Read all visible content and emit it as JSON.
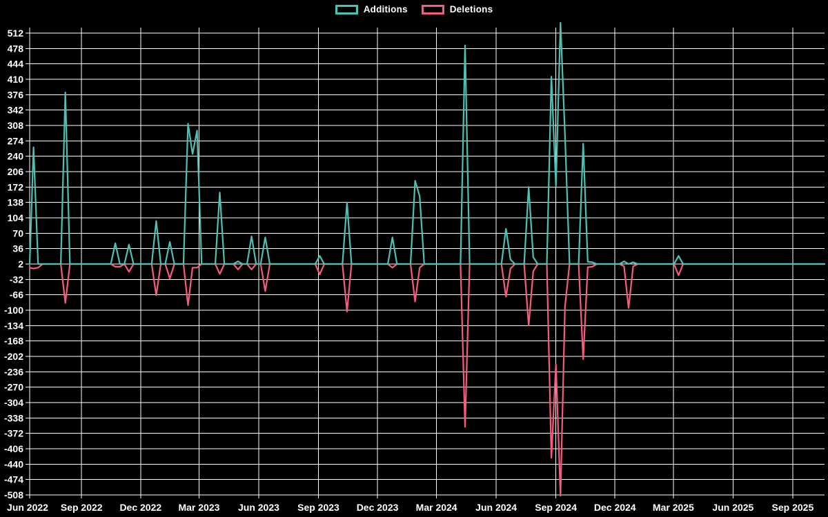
{
  "chart_data": {
    "type": "line",
    "title": "",
    "legend_position": "top",
    "background_color": "#000000",
    "grid_color": "#ffffff",
    "tick_color": "#ffffff",
    "series": [
      {
        "name": "Additions",
        "color": "#4bc2b4"
      },
      {
        "name": "Deletions",
        "color": "#f75c7e"
      }
    ],
    "x_ticks": [
      "Jun 2022",
      "Sep 2022",
      "Dec 2022",
      "Mar 2023",
      "Jun 2023",
      "Sep 2023",
      "Dec 2023",
      "Mar 2024",
      "Jun 2024",
      "Sep 2024",
      "Dec 2024",
      "Mar 2025",
      "Jun 2025",
      "Sep 2025"
    ],
    "y_ticks": [
      512,
      478,
      444,
      410,
      376,
      342,
      308,
      274,
      240,
      206,
      172,
      138,
      104,
      70,
      36,
      2,
      -32,
      -66,
      -100,
      -134,
      -168,
      -202,
      -236,
      -270,
      -304,
      -338,
      -372,
      -406,
      -440,
      -474,
      -508
    ],
    "x_axis": {
      "start_date": "2022-06-13",
      "end_date": "2025-10-20"
    },
    "interval": "weekly",
    "baseline_value": 2,
    "points": [
      {
        "week": "2022-06-12",
        "additions": 2,
        "deletions": -6
      },
      {
        "week": "2022-06-19",
        "additions": 260,
        "deletions": -8
      },
      {
        "week": "2022-06-26",
        "additions": 2,
        "deletions": -6
      },
      {
        "week": "2022-08-07",
        "additions": 381,
        "deletions": -84
      },
      {
        "week": "2022-10-23",
        "additions": 48,
        "deletions": -4
      },
      {
        "week": "2022-10-30",
        "additions": 2,
        "deletions": -4
      },
      {
        "week": "2022-11-13",
        "additions": 45,
        "deletions": -15
      },
      {
        "week": "2022-12-25",
        "additions": 97,
        "deletions": -67
      },
      {
        "week": "2023-01-15",
        "additions": 51,
        "deletions": -30
      },
      {
        "week": "2023-02-12",
        "additions": 312,
        "deletions": -89
      },
      {
        "week": "2023-02-19",
        "additions": 245,
        "deletions": -6
      },
      {
        "week": "2023-02-26",
        "additions": 297,
        "deletions": -6
      },
      {
        "week": "2023-04-02",
        "additions": 160,
        "deletions": -20
      },
      {
        "week": "2023-04-30",
        "additions": 8,
        "deletions": -10
      },
      {
        "week": "2023-05-21",
        "additions": 63,
        "deletions": -10
      },
      {
        "week": "2023-06-11",
        "additions": 61,
        "deletions": -58
      },
      {
        "week": "2023-09-03",
        "additions": 20,
        "deletions": -21
      },
      {
        "week": "2023-10-15",
        "additions": 138,
        "deletions": -103
      },
      {
        "week": "2023-12-24",
        "additions": 61,
        "deletions": -6
      },
      {
        "week": "2024-01-28",
        "additions": 186,
        "deletions": -81
      },
      {
        "week": "2024-02-04",
        "additions": 152,
        "deletions": -6
      },
      {
        "week": "2024-04-14",
        "additions": 485,
        "deletions": -358
      },
      {
        "week": "2024-06-16",
        "additions": 80,
        "deletions": -70
      },
      {
        "week": "2024-06-23",
        "additions": 12,
        "deletions": -8
      },
      {
        "week": "2024-07-21",
        "additions": 172,
        "deletions": -134
      },
      {
        "week": "2024-07-28",
        "additions": 17,
        "deletions": -14
      },
      {
        "week": "2024-08-25",
        "additions": 416,
        "deletions": -426
      },
      {
        "week": "2024-09-01",
        "additions": 175,
        "deletions": -220
      },
      {
        "week": "2024-09-08",
        "additions": 535,
        "deletions": -510
      },
      {
        "week": "2024-09-15",
        "additions": 287,
        "deletions": -92
      },
      {
        "week": "2024-10-13",
        "additions": 268,
        "deletions": -208
      },
      {
        "week": "2024-10-20",
        "additions": 7,
        "deletions": -5
      },
      {
        "week": "2024-10-27",
        "additions": 6,
        "deletions": -4
      },
      {
        "week": "2024-12-15",
        "additions": 8,
        "deletions": -3
      },
      {
        "week": "2024-12-22",
        "additions": 2,
        "deletions": -95
      },
      {
        "week": "2024-12-29",
        "additions": 6,
        "deletions": -3
      },
      {
        "week": "2025-03-09",
        "additions": 20,
        "deletions": -23
      }
    ]
  }
}
